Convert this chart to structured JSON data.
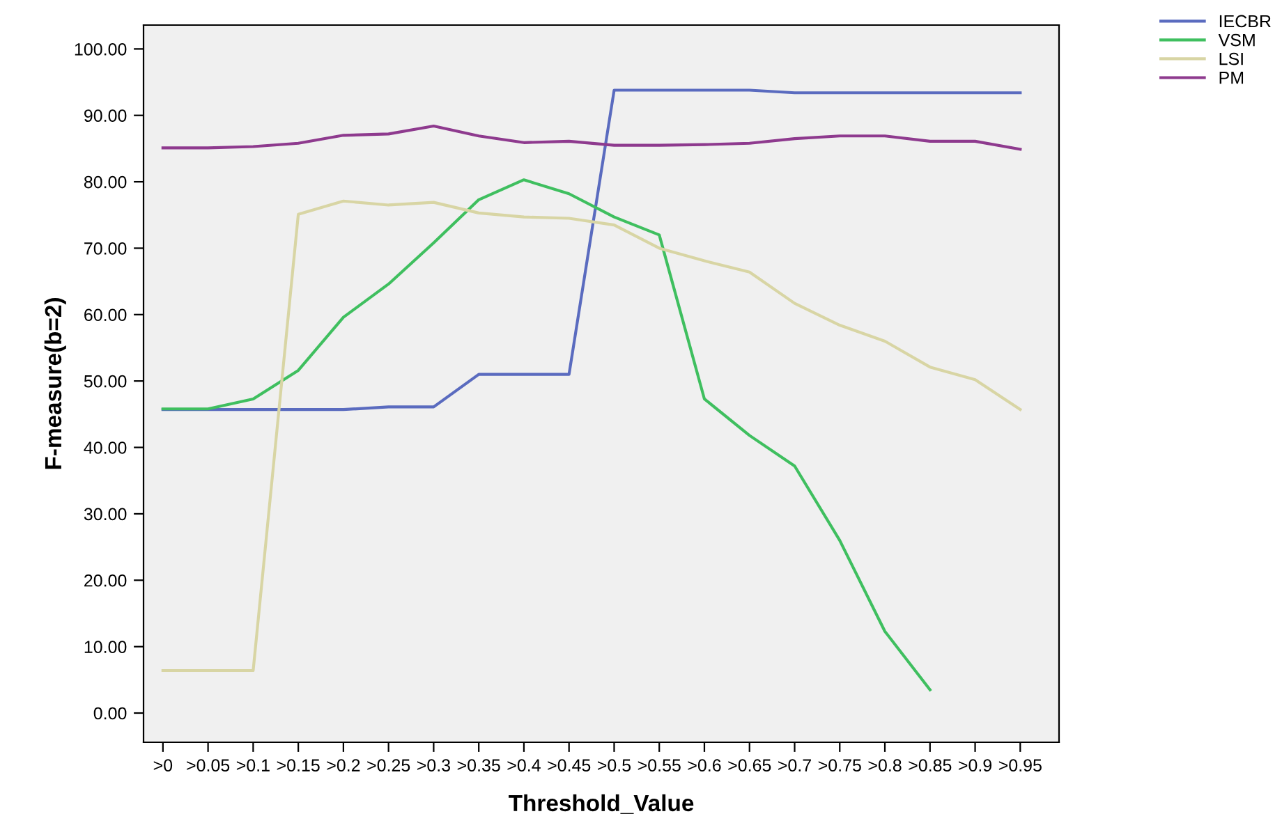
{
  "chart_data": {
    "type": "line",
    "xlabel": "Threshold_Value",
    "ylabel": "F-measure(b=2)",
    "categories": [
      ">0",
      ">0.05",
      ">0.1",
      ">0.15",
      ">0.2",
      ">0.25",
      ">0.3",
      ">0.35",
      ">0.4",
      ">0.45",
      ">0.5",
      ">0.55",
      ">0.6",
      ">0.65",
      ">0.7",
      ">0.75",
      ">0.8",
      ">0.85",
      ">0.9",
      ">0.95"
    ],
    "series": [
      {
        "name": "IECBR",
        "color": "#5a6bbf",
        "values": [
          45.7,
          45.7,
          45.7,
          45.7,
          45.7,
          46.1,
          46.1,
          51,
          51,
          51,
          93.8,
          93.8,
          93.8,
          93.8,
          93.4,
          93.4,
          93.4,
          93.4,
          93.4,
          93.4
        ]
      },
      {
        "name": "VSM",
        "color": "#3fbf5f",
        "values": [
          45.8,
          45.8,
          47.3,
          51.6,
          59.6,
          64.6,
          70.8,
          77.3,
          80.3,
          78.2,
          74.7,
          72,
          47.3,
          41.8,
          37.2,
          26,
          12.3,
          3.5,
          null,
          null
        ]
      },
      {
        "name": "LSI",
        "color": "#d8d5a4",
        "values": [
          6.4,
          6.4,
          6.4,
          75.1,
          77.1,
          76.5,
          76.9,
          75.3,
          74.7,
          74.5,
          73.5,
          70,
          68.1,
          66.4,
          61.7,
          58.4,
          56,
          52.1,
          50.2,
          45.7
        ]
      },
      {
        "name": "PM",
        "color": "#8e3a8e",
        "values": [
          85.1,
          85.1,
          85.3,
          85.8,
          87,
          87.2,
          88.4,
          86.9,
          85.9,
          86.1,
          85.5,
          85.5,
          85.6,
          85.8,
          86.5,
          86.9,
          86.9,
          86.1,
          86.1,
          84.9
        ]
      }
    ],
    "ylim": [
      -4.4,
      103.6
    ],
    "yticks": [
      {
        "value": 0,
        "label": "0.00"
      },
      {
        "value": 10,
        "label": "10.00"
      },
      {
        "value": 20,
        "label": "20.00"
      },
      {
        "value": 30,
        "label": "30.00"
      },
      {
        "value": 40,
        "label": "40.00"
      },
      {
        "value": 50,
        "label": "50.00"
      },
      {
        "value": 60,
        "label": "60.00"
      },
      {
        "value": 70,
        "label": "70.00"
      },
      {
        "value": 80,
        "label": "80.00"
      },
      {
        "value": 90,
        "label": "90.00"
      },
      {
        "value": 100,
        "label": "100.00"
      }
    ],
    "grid": false,
    "legend": "top right",
    "line_style": "solid",
    "marker": "none"
  }
}
